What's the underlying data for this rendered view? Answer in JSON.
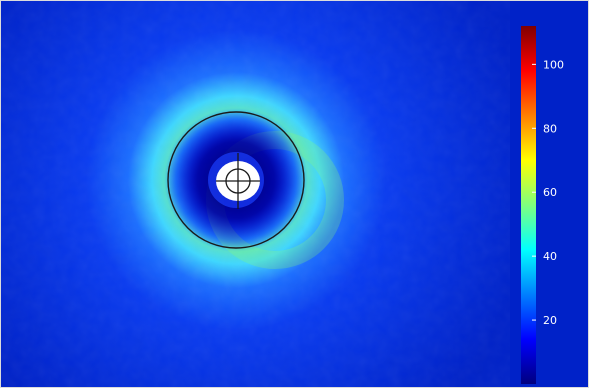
{
  "chart_data": {
    "type": "heatmap",
    "title": "",
    "xlabel": "",
    "ylabel": "",
    "grid": false,
    "colormap": "jet",
    "colors": {
      "background": "#0022c8",
      "colormap_stops": [
        "#00007f",
        "#0000ff",
        "#007fff",
        "#00ffff",
        "#7fff7f",
        "#ffff00",
        "#ff7f00",
        "#ff0000",
        "#7f0000"
      ]
    },
    "colorbar": {
      "min": 0,
      "max": 112,
      "ticks": [
        20,
        40,
        60,
        80,
        100
      ],
      "tick_labels": [
        "20",
        "40",
        "60",
        "80",
        "100"
      ],
      "placement": "right"
    },
    "field": {
      "background_value": 8,
      "ring_peak_value": 45,
      "inner_dark_value": 2,
      "hole_value": null
    },
    "annotations": [
      {
        "kind": "outer-circle",
        "color": "#1a1a1a"
      },
      {
        "kind": "inner-hole-crosshair",
        "color": "#1a1a1a"
      }
    ]
  }
}
